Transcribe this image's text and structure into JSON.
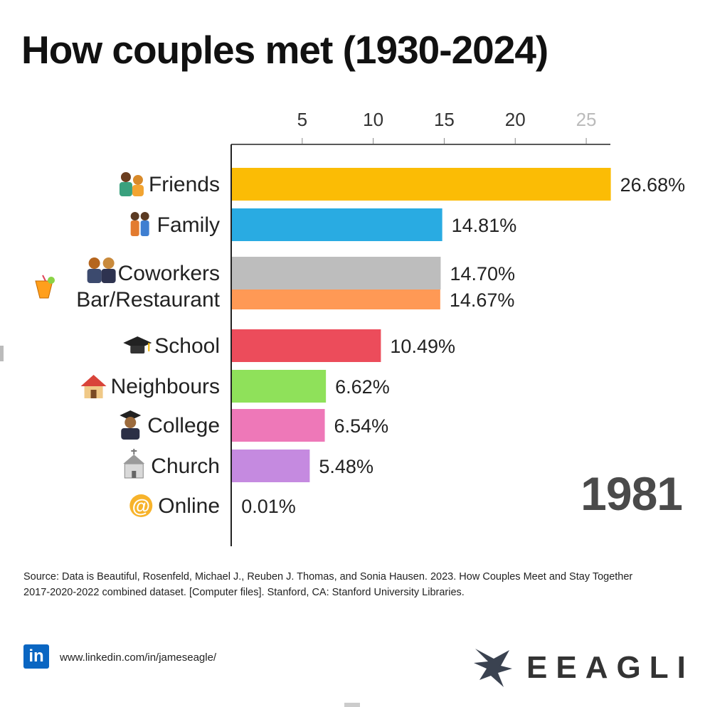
{
  "title": "How couples met (1930-2024)",
  "year": "1981",
  "source": "Source: Data is Beautiful, Rosenfeld, Michael J., Reuben J. Thomas, and Sonia Hausen. 2023. How Couples Meet and Stay Together 2017-2020-2022 combined dataset. [Computer files]. Stanford, CA: Stanford University Libraries.",
  "footer": {
    "linkedin_icon": "in",
    "url": "www.linkedin.com/in/jameseagle/",
    "brand": "EEAGLI",
    "brand_icon": "eagle-logo-icon"
  },
  "chart_data": {
    "type": "bar",
    "orientation": "horizontal",
    "title": "How couples met (1930-2024)",
    "xaxis_position": "top",
    "xticks": [
      5,
      10,
      15,
      20,
      25
    ],
    "xlim": [
      0,
      26.7
    ],
    "grid": false,
    "categories": [
      "Friends",
      "Family",
      "Coworkers",
      "Bar/Restaurant",
      "School",
      "Neighbours",
      "College",
      "Church",
      "Online"
    ],
    "values": [
      26.68,
      14.81,
      14.7,
      14.67,
      10.49,
      6.62,
      6.54,
      5.48,
      0.01
    ],
    "value_labels": [
      "26.68%",
      "14.81%",
      "14.70%",
      "14.67%",
      "10.49%",
      "6.62%",
      "6.54%",
      "5.48%",
      "0.01%"
    ],
    "colors": [
      "#fbbc05",
      "#29abe2",
      "#bdbdbd",
      "#ff9955",
      "#ec4c5b",
      "#8fe15a",
      "#ee78b8",
      "#c58ae0",
      "#9a9a9a"
    ],
    "icons": [
      "couple-icon",
      "family-icon",
      "coworkers-icon",
      "cocktail-icon",
      "graduation-cap-icon",
      "house-icon",
      "graduate-icon",
      "church-icon",
      "at-sign-icon"
    ]
  }
}
